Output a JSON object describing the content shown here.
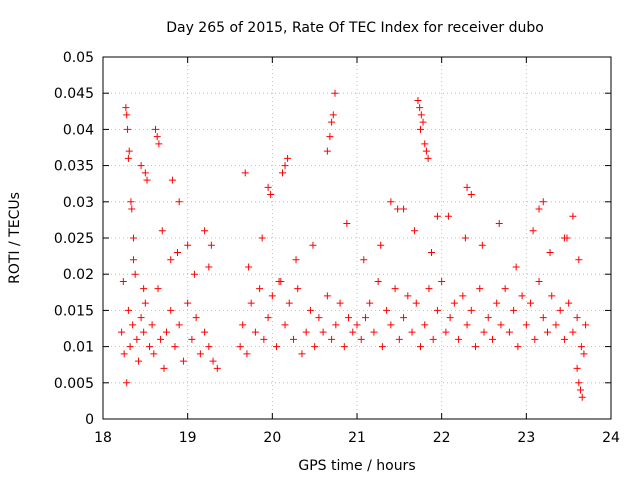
{
  "chart_data": {
    "type": "scatter",
    "title": "Day 265 of 2015, Rate Of TEC Index for receiver dubo",
    "xlabel": "GPS time / hours",
    "ylabel": "ROTI / TECUs",
    "xlim": [
      18,
      24
    ],
    "ylim": [
      0,
      0.05
    ],
    "xticks": [
      "18",
      "19",
      "20",
      "21",
      "22",
      "23",
      "24"
    ],
    "yticks": [
      "0",
      "0.005",
      "0.01",
      "0.015",
      "0.02",
      "0.025",
      "0.03",
      "0.035",
      "0.04",
      "0.045",
      "0.05"
    ],
    "grid": true,
    "marker": "plus",
    "color": "#ff0000",
    "series": [
      {
        "name": "ROTI",
        "x": [
          18.22,
          18.25,
          18.28,
          18.3,
          18.32,
          18.35,
          18.38,
          18.4,
          18.42,
          18.45,
          18.48,
          18.5,
          18.55,
          18.58,
          18.6,
          18.65,
          18.68,
          18.72,
          18.75,
          18.8,
          18.85,
          18.9,
          18.95,
          19.0,
          19.05,
          19.1,
          19.15,
          19.2,
          19.25,
          19.3,
          19.35,
          18.27,
          18.28,
          18.29,
          18.3,
          18.31,
          18.33,
          18.34,
          18.36,
          18.45,
          18.5,
          18.52,
          18.62,
          18.64,
          18.66,
          18.8,
          18.82,
          18.9,
          19.0,
          19.2,
          19.25,
          19.62,
          19.65,
          19.7,
          19.75,
          19.8,
          19.85,
          19.9,
          19.95,
          20.0,
          20.05,
          20.1,
          20.15,
          20.2,
          20.25,
          20.3,
          20.35,
          20.4,
          20.45,
          20.5,
          20.55,
          20.6,
          20.65,
          20.7,
          20.75,
          20.8,
          20.85,
          20.9,
          20.95,
          21.0,
          19.68,
          19.95,
          19.98,
          20.12,
          20.15,
          20.18,
          20.65,
          20.68,
          20.7,
          20.72,
          20.74,
          21.05,
          21.1,
          21.15,
          21.2,
          21.25,
          21.3,
          21.35,
          21.4,
          21.45,
          21.5,
          21.55,
          21.6,
          21.65,
          21.7,
          21.75,
          21.8,
          21.85,
          21.9,
          21.95,
          22.0,
          22.05,
          22.1,
          22.15,
          22.2,
          22.25,
          22.3,
          22.35,
          22.4,
          22.45,
          22.5,
          21.72,
          21.74,
          21.76,
          21.78,
          21.8,
          21.82,
          21.75,
          21.84,
          21.4,
          21.55,
          21.95,
          22.3,
          22.35,
          22.55,
          22.6,
          22.65,
          22.7,
          22.75,
          22.8,
          22.85,
          22.9,
          22.95,
          23.0,
          23.05,
          23.1,
          23.15,
          23.2,
          23.25,
          23.3,
          23.35,
          23.4,
          23.45,
          23.5,
          23.55,
          23.6,
          23.65,
          23.7,
          23.15,
          23.2,
          23.45,
          23.55,
          23.6,
          23.62,
          23.64,
          23.66,
          23.68,
          18.24,
          18.36,
          18.48,
          18.7,
          18.88,
          19.08,
          19.28,
          19.72,
          19.88,
          20.08,
          20.28,
          20.48,
          20.88,
          21.08,
          21.28,
          21.48,
          21.68,
          21.88,
          22.08,
          22.28,
          22.48,
          22.68,
          22.88,
          23.08,
          23.28,
          23.48,
          23.62
        ],
        "y": [
          0.012,
          0.009,
          0.005,
          0.015,
          0.01,
          0.013,
          0.02,
          0.011,
          0.008,
          0.014,
          0.012,
          0.016,
          0.01,
          0.013,
          0.009,
          0.018,
          0.011,
          0.007,
          0.012,
          0.015,
          0.01,
          0.013,
          0.008,
          0.016,
          0.011,
          0.014,
          0.009,
          0.012,
          0.01,
          0.008,
          0.007,
          0.043,
          0.042,
          0.04,
          0.036,
          0.037,
          0.03,
          0.029,
          0.025,
          0.035,
          0.034,
          0.033,
          0.04,
          0.039,
          0.038,
          0.022,
          0.033,
          0.03,
          0.024,
          0.026,
          0.021,
          0.01,
          0.013,
          0.009,
          0.016,
          0.012,
          0.018,
          0.011,
          0.014,
          0.017,
          0.01,
          0.019,
          0.013,
          0.016,
          0.011,
          0.018,
          0.009,
          0.012,
          0.015,
          0.01,
          0.014,
          0.012,
          0.017,
          0.011,
          0.013,
          0.016,
          0.01,
          0.014,
          0.012,
          0.013,
          0.034,
          0.032,
          0.031,
          0.034,
          0.035,
          0.036,
          0.037,
          0.039,
          0.041,
          0.042,
          0.045,
          0.011,
          0.014,
          0.016,
          0.012,
          0.019,
          0.01,
          0.015,
          0.013,
          0.018,
          0.011,
          0.014,
          0.017,
          0.012,
          0.016,
          0.01,
          0.013,
          0.018,
          0.011,
          0.015,
          0.019,
          0.012,
          0.014,
          0.016,
          0.011,
          0.017,
          0.013,
          0.015,
          0.01,
          0.018,
          0.012,
          0.044,
          0.043,
          0.042,
          0.041,
          0.038,
          0.037,
          0.04,
          0.036,
          0.03,
          0.029,
          0.028,
          0.032,
          0.031,
          0.014,
          0.011,
          0.016,
          0.013,
          0.018,
          0.012,
          0.015,
          0.01,
          0.017,
          0.013,
          0.016,
          0.011,
          0.019,
          0.014,
          0.012,
          0.017,
          0.013,
          0.015,
          0.011,
          0.016,
          0.012,
          0.014,
          0.01,
          0.013,
          0.029,
          0.03,
          0.025,
          0.028,
          0.007,
          0.005,
          0.004,
          0.003,
          0.009,
          0.019,
          0.022,
          0.018,
          0.026,
          0.023,
          0.02,
          0.024,
          0.021,
          0.025,
          0.019,
          0.022,
          0.024,
          0.027,
          0.022,
          0.024,
          0.029,
          0.026,
          0.023,
          0.028,
          0.025,
          0.024,
          0.027,
          0.021,
          0.026,
          0.023,
          0.025,
          0.022
        ]
      }
    ]
  }
}
